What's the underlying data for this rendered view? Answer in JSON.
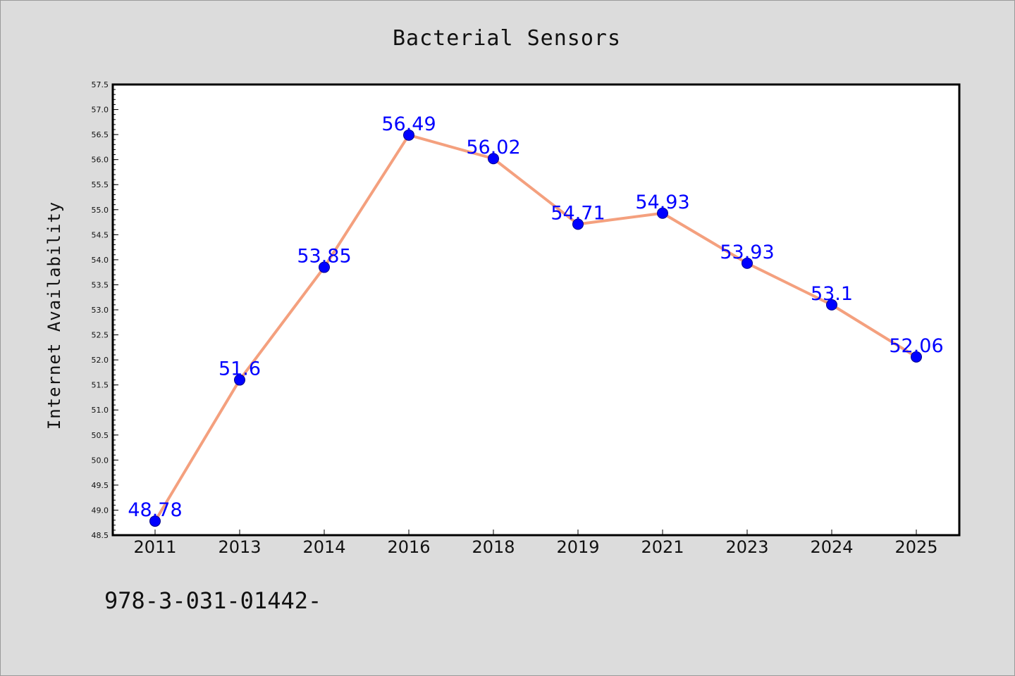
{
  "chart_data": {
    "type": "line",
    "title": "Bacterial Sensors",
    "xlabel": "",
    "ylabel": "Internet Availability",
    "categories": [
      "2011",
      "2013",
      "2014",
      "2016",
      "2018",
      "2019",
      "2021",
      "2023",
      "2024",
      "2025"
    ],
    "series": [
      {
        "values": [
          48.78,
          51.6,
          53.85,
          56.49,
          56.02,
          54.71,
          54.93,
          53.93,
          53.1,
          52.06
        ],
        "labels": [
          "48.78",
          "51.6",
          "53.85",
          "56.49",
          "56.02",
          "54.71",
          "54.93",
          "53.93",
          "53.1",
          "52.06"
        ],
        "line_color": "#f4a07e",
        "marker_color": "#0000ff"
      }
    ],
    "ylim": [
      48.5,
      57.5
    ],
    "yticks": [
      "48.5",
      "49.0",
      "49.5",
      "50.0",
      "50.5",
      "51.0",
      "51.5",
      "52.0",
      "52.5",
      "53.0",
      "53.5",
      "54.0",
      "54.5",
      "55.0",
      "55.5",
      "56.0",
      "56.5",
      "57.0",
      "57.5"
    ],
    "grid": false,
    "legend": "none",
    "colors": {
      "background": "#dcdcdc",
      "plot_background": "#ffffff",
      "label_color": "#0000ff"
    }
  },
  "footnote": "978-3-031-01442-"
}
